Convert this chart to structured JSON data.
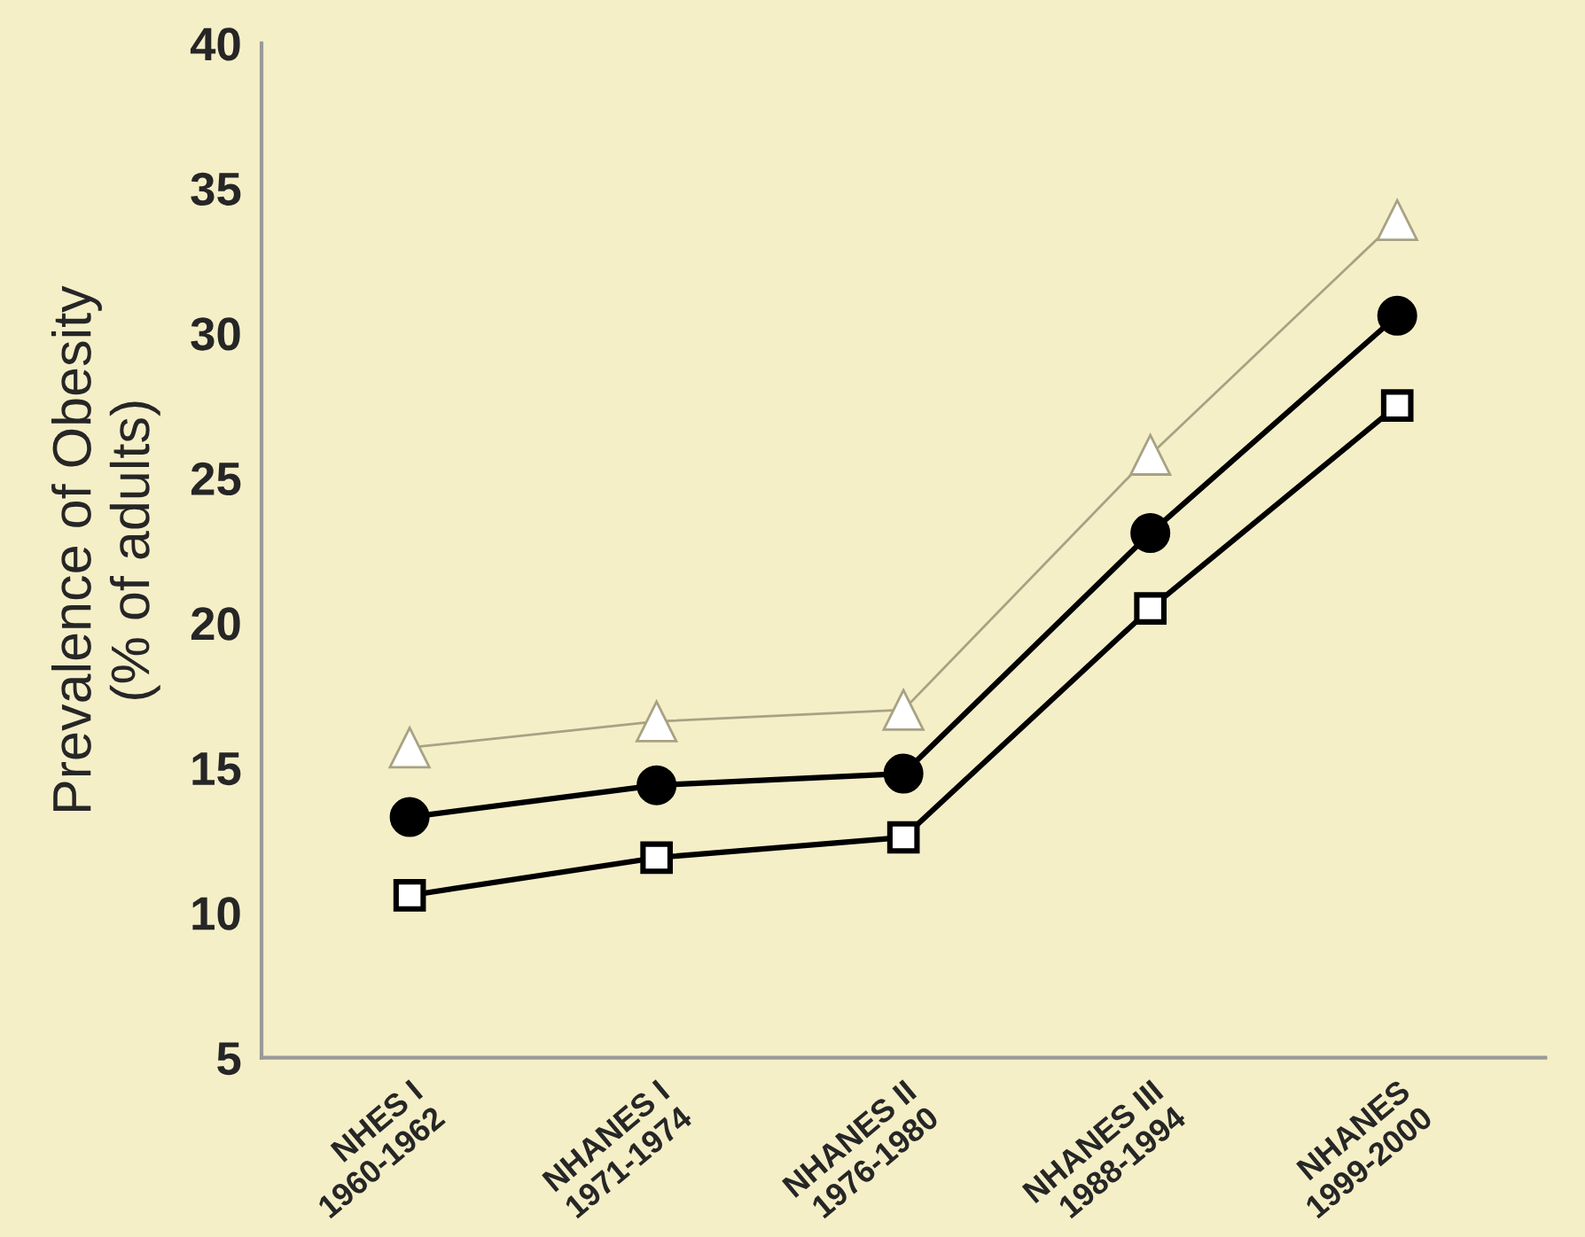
{
  "chart_data": {
    "type": "line",
    "ylabel": "Prevalence of Obesity\n(% of adults)",
    "categories": [
      "NHES I\n1960-1962",
      "NHANES I\n1971-1974",
      "NHANES II\n1976-1980",
      "NHANES III\n1988-1994",
      "NHANES\n1999-2000"
    ],
    "series": [
      {
        "color": "#a8a284",
        "marker": "triangle",
        "values": [
          15.7,
          16.6,
          17.0,
          25.8,
          33.9
        ]
      },
      {
        "color": "#000000",
        "marker": "circle",
        "values": [
          13.3,
          14.4,
          14.8,
          23.1,
          30.6
        ]
      },
      {
        "color": "#000000",
        "marker": "square",
        "values": [
          10.6,
          11.9,
          12.6,
          20.5,
          27.5
        ]
      }
    ],
    "ylim": [
      5,
      40
    ],
    "yticks": [
      5,
      10,
      15,
      20,
      25,
      30,
      35,
      40
    ],
    "grid": false,
    "legend": false,
    "line_style": "solid"
  }
}
